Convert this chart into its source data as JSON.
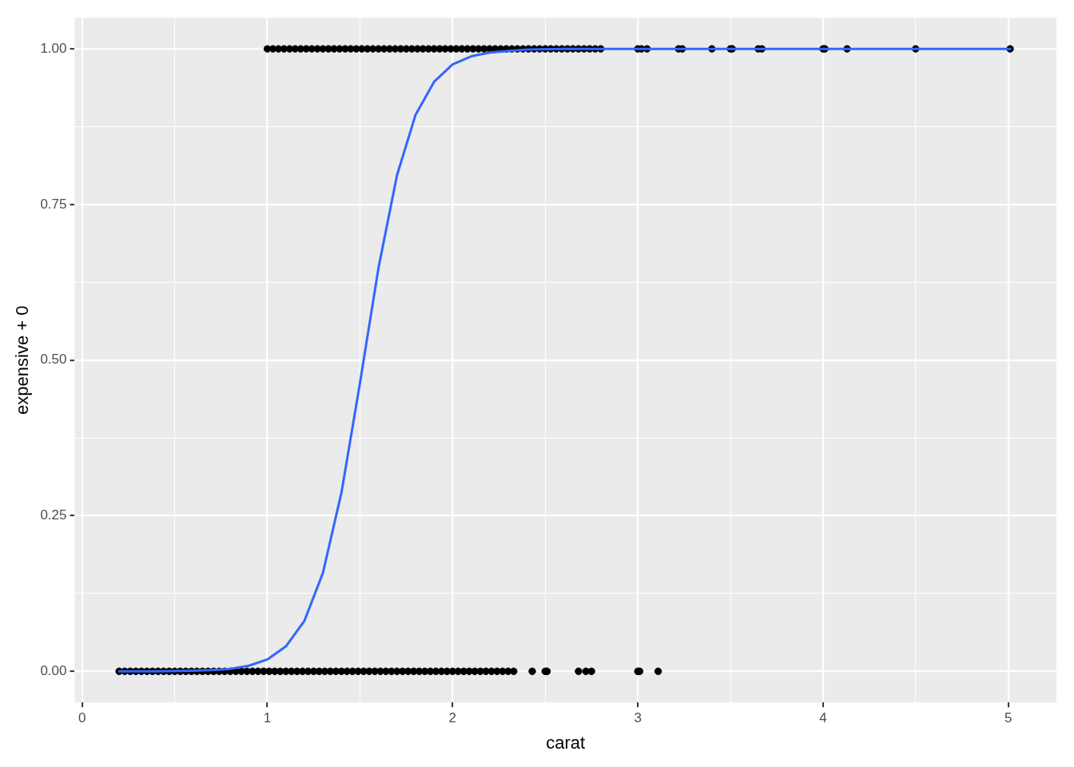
{
  "chart_data": {
    "type": "scatter",
    "xlabel": "carat",
    "ylabel": "expensive + 0",
    "xlim": [
      -0.04,
      5.26
    ],
    "ylim": [
      -0.05,
      1.05
    ],
    "xticks": [
      0,
      {
        "value": 0.5,
        "label": null
      },
      1,
      {
        "value": 1.5,
        "label": null
      },
      2,
      {
        "value": 2.5,
        "label": null
      },
      3,
      {
        "value": 3.5,
        "label": null
      },
      4,
      {
        "value": 4.5,
        "label": null
      },
      5
    ],
    "yticks": [
      {
        "value": 0,
        "label": "0.00"
      },
      {
        "value": 0.125,
        "label": null
      },
      {
        "value": 0.25,
        "label": "0.25"
      },
      {
        "value": 0.375,
        "label": null
      },
      {
        "value": 0.5,
        "label": "0.50"
      },
      {
        "value": 0.625,
        "label": null
      },
      {
        "value": 0.75,
        "label": "0.75"
      },
      {
        "value": 0.875,
        "label": null
      },
      {
        "value": 1,
        "label": "1.00"
      }
    ],
    "grid": true,
    "legend": false,
    "marker": "circle",
    "series": [
      {
        "type": "scatter",
        "color": "#000000",
        "x": [
          1.0,
          1.03,
          1.06,
          1.09,
          1.12,
          1.15,
          1.18,
          1.21,
          1.24,
          1.27,
          1.3,
          1.33,
          1.36,
          1.39,
          1.42,
          1.45,
          1.48,
          1.51,
          1.54,
          1.57,
          1.6,
          1.63,
          1.66,
          1.69,
          1.72,
          1.75,
          1.78,
          1.81,
          1.84,
          1.87,
          1.9,
          1.93,
          1.96,
          1.99,
          2.02,
          2.05,
          2.08,
          2.11,
          2.14,
          2.17,
          2.2,
          2.23,
          2.26,
          2.29,
          2.32,
          2.35,
          2.38,
          2.41,
          2.44,
          2.47,
          2.5,
          2.53,
          2.56,
          2.59,
          2.62,
          2.65,
          2.68,
          2.71,
          2.74,
          2.77,
          2.8,
          3.0,
          3.02,
          3.05,
          3.22,
          3.24,
          3.4,
          3.5,
          3.51,
          3.65,
          3.67,
          4.0,
          4.01,
          4.13,
          4.5,
          5.01
        ],
        "values": [
          1,
          1,
          1,
          1,
          1,
          1,
          1,
          1,
          1,
          1,
          1,
          1,
          1,
          1,
          1,
          1,
          1,
          1,
          1,
          1,
          1,
          1,
          1,
          1,
          1,
          1,
          1,
          1,
          1,
          1,
          1,
          1,
          1,
          1,
          1,
          1,
          1,
          1,
          1,
          1,
          1,
          1,
          1,
          1,
          1,
          1,
          1,
          1,
          1,
          1,
          1,
          1,
          1,
          1,
          1,
          1,
          1,
          1,
          1,
          1,
          1,
          1,
          1,
          1,
          1,
          1,
          1,
          1,
          1,
          1,
          1,
          1,
          1,
          1,
          1,
          1
        ]
      },
      {
        "type": "scatter",
        "color": "#000000",
        "x": [
          0.2,
          0.23,
          0.26,
          0.29,
          0.32,
          0.35,
          0.38,
          0.41,
          0.44,
          0.47,
          0.5,
          0.53,
          0.56,
          0.59,
          0.62,
          0.65,
          0.68,
          0.71,
          0.74,
          0.77,
          0.8,
          0.83,
          0.86,
          0.89,
          0.92,
          0.95,
          0.98,
          1.01,
          1.04,
          1.07,
          1.1,
          1.13,
          1.16,
          1.19,
          1.22,
          1.25,
          1.28,
          1.31,
          1.34,
          1.37,
          1.4,
          1.43,
          1.46,
          1.49,
          1.52,
          1.55,
          1.58,
          1.61,
          1.64,
          1.67,
          1.7,
          1.73,
          1.76,
          1.79,
          1.82,
          1.85,
          1.88,
          1.91,
          1.94,
          1.97,
          2.0,
          2.03,
          2.06,
          2.09,
          2.12,
          2.15,
          2.18,
          2.21,
          2.24,
          2.27,
          2.3,
          2.33,
          2.43,
          2.5,
          2.51,
          2.68,
          2.72,
          2.75,
          3.0,
          3.01,
          3.11
        ],
        "values": [
          0,
          0,
          0,
          0,
          0,
          0,
          0,
          0,
          0,
          0,
          0,
          0,
          0,
          0,
          0,
          0,
          0,
          0,
          0,
          0,
          0,
          0,
          0,
          0,
          0,
          0,
          0,
          0,
          0,
          0,
          0,
          0,
          0,
          0,
          0,
          0,
          0,
          0,
          0,
          0,
          0,
          0,
          0,
          0,
          0,
          0,
          0,
          0,
          0,
          0,
          0,
          0,
          0,
          0,
          0,
          0,
          0,
          0,
          0,
          0,
          0,
          0,
          0,
          0,
          0,
          0,
          0,
          0,
          0,
          0,
          0,
          0,
          0,
          0,
          0,
          0,
          0,
          0,
          0,
          0,
          0
        ]
      },
      {
        "type": "line",
        "color": "#3366ff",
        "marker": "none",
        "x": [
          0.2,
          0.4,
          0.6,
          0.7,
          0.8,
          0.9,
          1.0,
          1.1,
          1.2,
          1.3,
          1.4,
          1.5,
          1.6,
          1.7,
          1.8,
          1.9,
          2.0,
          2.1,
          2.2,
          2.4,
          2.6,
          3.0,
          5.01
        ],
        "values": [
          0.0,
          0.0,
          0.001,
          0.002,
          0.004,
          0.009,
          0.019,
          0.04,
          0.081,
          0.158,
          0.287,
          0.463,
          0.648,
          0.797,
          0.894,
          0.947,
          0.975,
          0.988,
          0.994,
          0.999,
          1.0,
          1.0,
          1.0
        ]
      }
    ]
  }
}
